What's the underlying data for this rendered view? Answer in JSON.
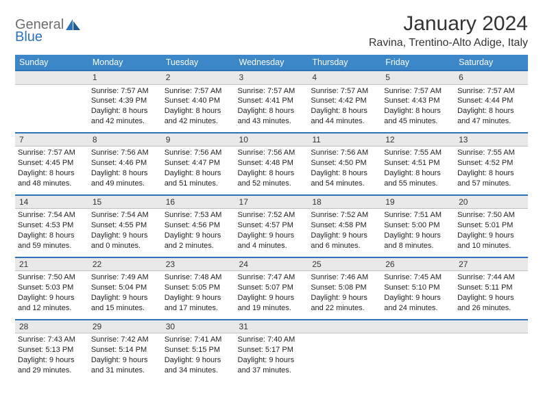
{
  "brand": {
    "word1": "General",
    "word2": "Blue",
    "color_gray": "#6d6d6d",
    "color_blue": "#2d72b8"
  },
  "header": {
    "title": "January 2024",
    "location": "Ravina, Trentino-Alto Adige, Italy"
  },
  "style": {
    "header_bg": "#3b87c8",
    "header_fg": "#ffffff",
    "daynum_bg": "#e9e9e9",
    "daynum_border_top": "#2d72b8",
    "text_color": "#222222",
    "page_bg": "#ffffff"
  },
  "days_of_week": [
    "Sunday",
    "Monday",
    "Tuesday",
    "Wednesday",
    "Thursday",
    "Friday",
    "Saturday"
  ],
  "weeks": [
    [
      null,
      {
        "n": "1",
        "sunrise": "Sunrise: 7:57 AM",
        "sunset": "Sunset: 4:39 PM",
        "daylight1": "Daylight: 8 hours",
        "daylight2": "and 42 minutes."
      },
      {
        "n": "2",
        "sunrise": "Sunrise: 7:57 AM",
        "sunset": "Sunset: 4:40 PM",
        "daylight1": "Daylight: 8 hours",
        "daylight2": "and 42 minutes."
      },
      {
        "n": "3",
        "sunrise": "Sunrise: 7:57 AM",
        "sunset": "Sunset: 4:41 PM",
        "daylight1": "Daylight: 8 hours",
        "daylight2": "and 43 minutes."
      },
      {
        "n": "4",
        "sunrise": "Sunrise: 7:57 AM",
        "sunset": "Sunset: 4:42 PM",
        "daylight1": "Daylight: 8 hours",
        "daylight2": "and 44 minutes."
      },
      {
        "n": "5",
        "sunrise": "Sunrise: 7:57 AM",
        "sunset": "Sunset: 4:43 PM",
        "daylight1": "Daylight: 8 hours",
        "daylight2": "and 45 minutes."
      },
      {
        "n": "6",
        "sunrise": "Sunrise: 7:57 AM",
        "sunset": "Sunset: 4:44 PM",
        "daylight1": "Daylight: 8 hours",
        "daylight2": "and 47 minutes."
      }
    ],
    [
      {
        "n": "7",
        "sunrise": "Sunrise: 7:57 AM",
        "sunset": "Sunset: 4:45 PM",
        "daylight1": "Daylight: 8 hours",
        "daylight2": "and 48 minutes."
      },
      {
        "n": "8",
        "sunrise": "Sunrise: 7:56 AM",
        "sunset": "Sunset: 4:46 PM",
        "daylight1": "Daylight: 8 hours",
        "daylight2": "and 49 minutes."
      },
      {
        "n": "9",
        "sunrise": "Sunrise: 7:56 AM",
        "sunset": "Sunset: 4:47 PM",
        "daylight1": "Daylight: 8 hours",
        "daylight2": "and 51 minutes."
      },
      {
        "n": "10",
        "sunrise": "Sunrise: 7:56 AM",
        "sunset": "Sunset: 4:48 PM",
        "daylight1": "Daylight: 8 hours",
        "daylight2": "and 52 minutes."
      },
      {
        "n": "11",
        "sunrise": "Sunrise: 7:56 AM",
        "sunset": "Sunset: 4:50 PM",
        "daylight1": "Daylight: 8 hours",
        "daylight2": "and 54 minutes."
      },
      {
        "n": "12",
        "sunrise": "Sunrise: 7:55 AM",
        "sunset": "Sunset: 4:51 PM",
        "daylight1": "Daylight: 8 hours",
        "daylight2": "and 55 minutes."
      },
      {
        "n": "13",
        "sunrise": "Sunrise: 7:55 AM",
        "sunset": "Sunset: 4:52 PM",
        "daylight1": "Daylight: 8 hours",
        "daylight2": "and 57 minutes."
      }
    ],
    [
      {
        "n": "14",
        "sunrise": "Sunrise: 7:54 AM",
        "sunset": "Sunset: 4:53 PM",
        "daylight1": "Daylight: 8 hours",
        "daylight2": "and 59 minutes."
      },
      {
        "n": "15",
        "sunrise": "Sunrise: 7:54 AM",
        "sunset": "Sunset: 4:55 PM",
        "daylight1": "Daylight: 9 hours",
        "daylight2": "and 0 minutes."
      },
      {
        "n": "16",
        "sunrise": "Sunrise: 7:53 AM",
        "sunset": "Sunset: 4:56 PM",
        "daylight1": "Daylight: 9 hours",
        "daylight2": "and 2 minutes."
      },
      {
        "n": "17",
        "sunrise": "Sunrise: 7:52 AM",
        "sunset": "Sunset: 4:57 PM",
        "daylight1": "Daylight: 9 hours",
        "daylight2": "and 4 minutes."
      },
      {
        "n": "18",
        "sunrise": "Sunrise: 7:52 AM",
        "sunset": "Sunset: 4:58 PM",
        "daylight1": "Daylight: 9 hours",
        "daylight2": "and 6 minutes."
      },
      {
        "n": "19",
        "sunrise": "Sunrise: 7:51 AM",
        "sunset": "Sunset: 5:00 PM",
        "daylight1": "Daylight: 9 hours",
        "daylight2": "and 8 minutes."
      },
      {
        "n": "20",
        "sunrise": "Sunrise: 7:50 AM",
        "sunset": "Sunset: 5:01 PM",
        "daylight1": "Daylight: 9 hours",
        "daylight2": "and 10 minutes."
      }
    ],
    [
      {
        "n": "21",
        "sunrise": "Sunrise: 7:50 AM",
        "sunset": "Sunset: 5:03 PM",
        "daylight1": "Daylight: 9 hours",
        "daylight2": "and 12 minutes."
      },
      {
        "n": "22",
        "sunrise": "Sunrise: 7:49 AM",
        "sunset": "Sunset: 5:04 PM",
        "daylight1": "Daylight: 9 hours",
        "daylight2": "and 15 minutes."
      },
      {
        "n": "23",
        "sunrise": "Sunrise: 7:48 AM",
        "sunset": "Sunset: 5:05 PM",
        "daylight1": "Daylight: 9 hours",
        "daylight2": "and 17 minutes."
      },
      {
        "n": "24",
        "sunrise": "Sunrise: 7:47 AM",
        "sunset": "Sunset: 5:07 PM",
        "daylight1": "Daylight: 9 hours",
        "daylight2": "and 19 minutes."
      },
      {
        "n": "25",
        "sunrise": "Sunrise: 7:46 AM",
        "sunset": "Sunset: 5:08 PM",
        "daylight1": "Daylight: 9 hours",
        "daylight2": "and 22 minutes."
      },
      {
        "n": "26",
        "sunrise": "Sunrise: 7:45 AM",
        "sunset": "Sunset: 5:10 PM",
        "daylight1": "Daylight: 9 hours",
        "daylight2": "and 24 minutes."
      },
      {
        "n": "27",
        "sunrise": "Sunrise: 7:44 AM",
        "sunset": "Sunset: 5:11 PM",
        "daylight1": "Daylight: 9 hours",
        "daylight2": "and 26 minutes."
      }
    ],
    [
      {
        "n": "28",
        "sunrise": "Sunrise: 7:43 AM",
        "sunset": "Sunset: 5:13 PM",
        "daylight1": "Daylight: 9 hours",
        "daylight2": "and 29 minutes."
      },
      {
        "n": "29",
        "sunrise": "Sunrise: 7:42 AM",
        "sunset": "Sunset: 5:14 PM",
        "daylight1": "Daylight: 9 hours",
        "daylight2": "and 31 minutes."
      },
      {
        "n": "30",
        "sunrise": "Sunrise: 7:41 AM",
        "sunset": "Sunset: 5:15 PM",
        "daylight1": "Daylight: 9 hours",
        "daylight2": "and 34 minutes."
      },
      {
        "n": "31",
        "sunrise": "Sunrise: 7:40 AM",
        "sunset": "Sunset: 5:17 PM",
        "daylight1": "Daylight: 9 hours",
        "daylight2": "and 37 minutes."
      },
      null,
      null,
      null
    ]
  ]
}
